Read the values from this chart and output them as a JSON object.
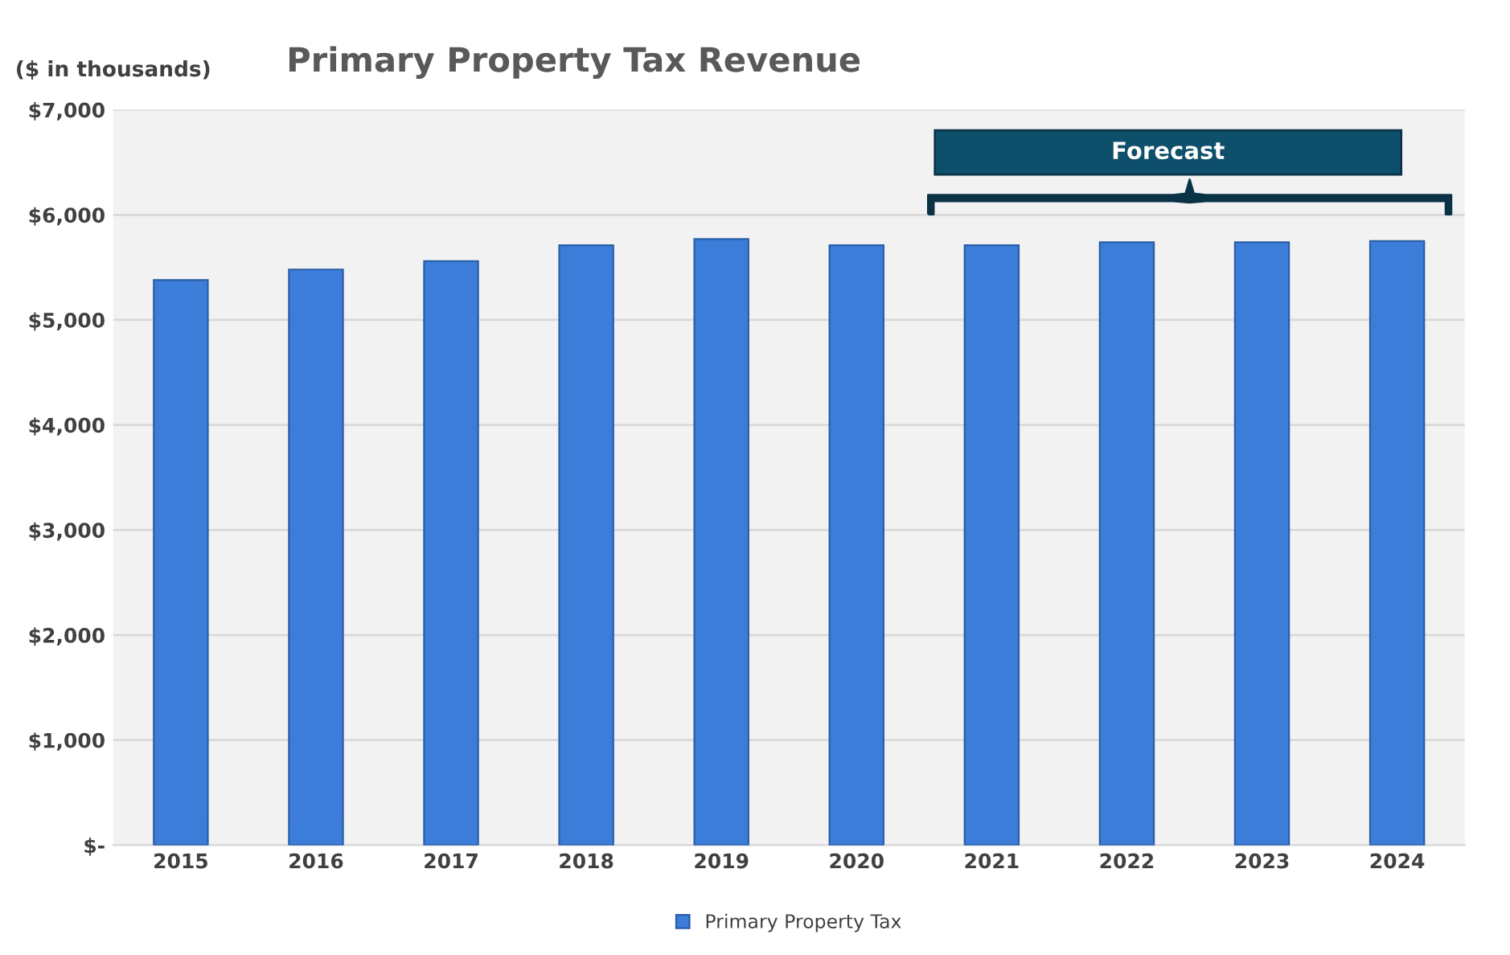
{
  "chart_data": {
    "type": "bar",
    "title": "Primary Property Tax Revenue",
    "ylabel": "($ in thousands)",
    "categories": [
      "2015",
      "2016",
      "2017",
      "2018",
      "2019",
      "2020",
      "2021",
      "2022",
      "2023",
      "2024"
    ],
    "series": [
      {
        "name": "Primary Property Tax",
        "color": "#3b7dd8",
        "values": [
          5380,
          5480,
          5560,
          5710,
          5770,
          5710,
          5710,
          5740,
          5740,
          5750
        ]
      }
    ],
    "ylim": [
      0,
      7000
    ],
    "yticks": [
      {
        "value": 0,
        "label": "$-"
      },
      {
        "value": 1000,
        "label": "$1,000"
      },
      {
        "value": 2000,
        "label": "$2,000"
      },
      {
        "value": 3000,
        "label": "$3,000"
      },
      {
        "value": 4000,
        "label": "$4,000"
      },
      {
        "value": 5000,
        "label": "$5,000"
      },
      {
        "value": 6000,
        "label": "$6,000"
      },
      {
        "value": 7000,
        "label": "$7,000"
      }
    ],
    "grid": "y",
    "legend": "bottom",
    "annotations": [
      "Forecast"
    ]
  }
}
